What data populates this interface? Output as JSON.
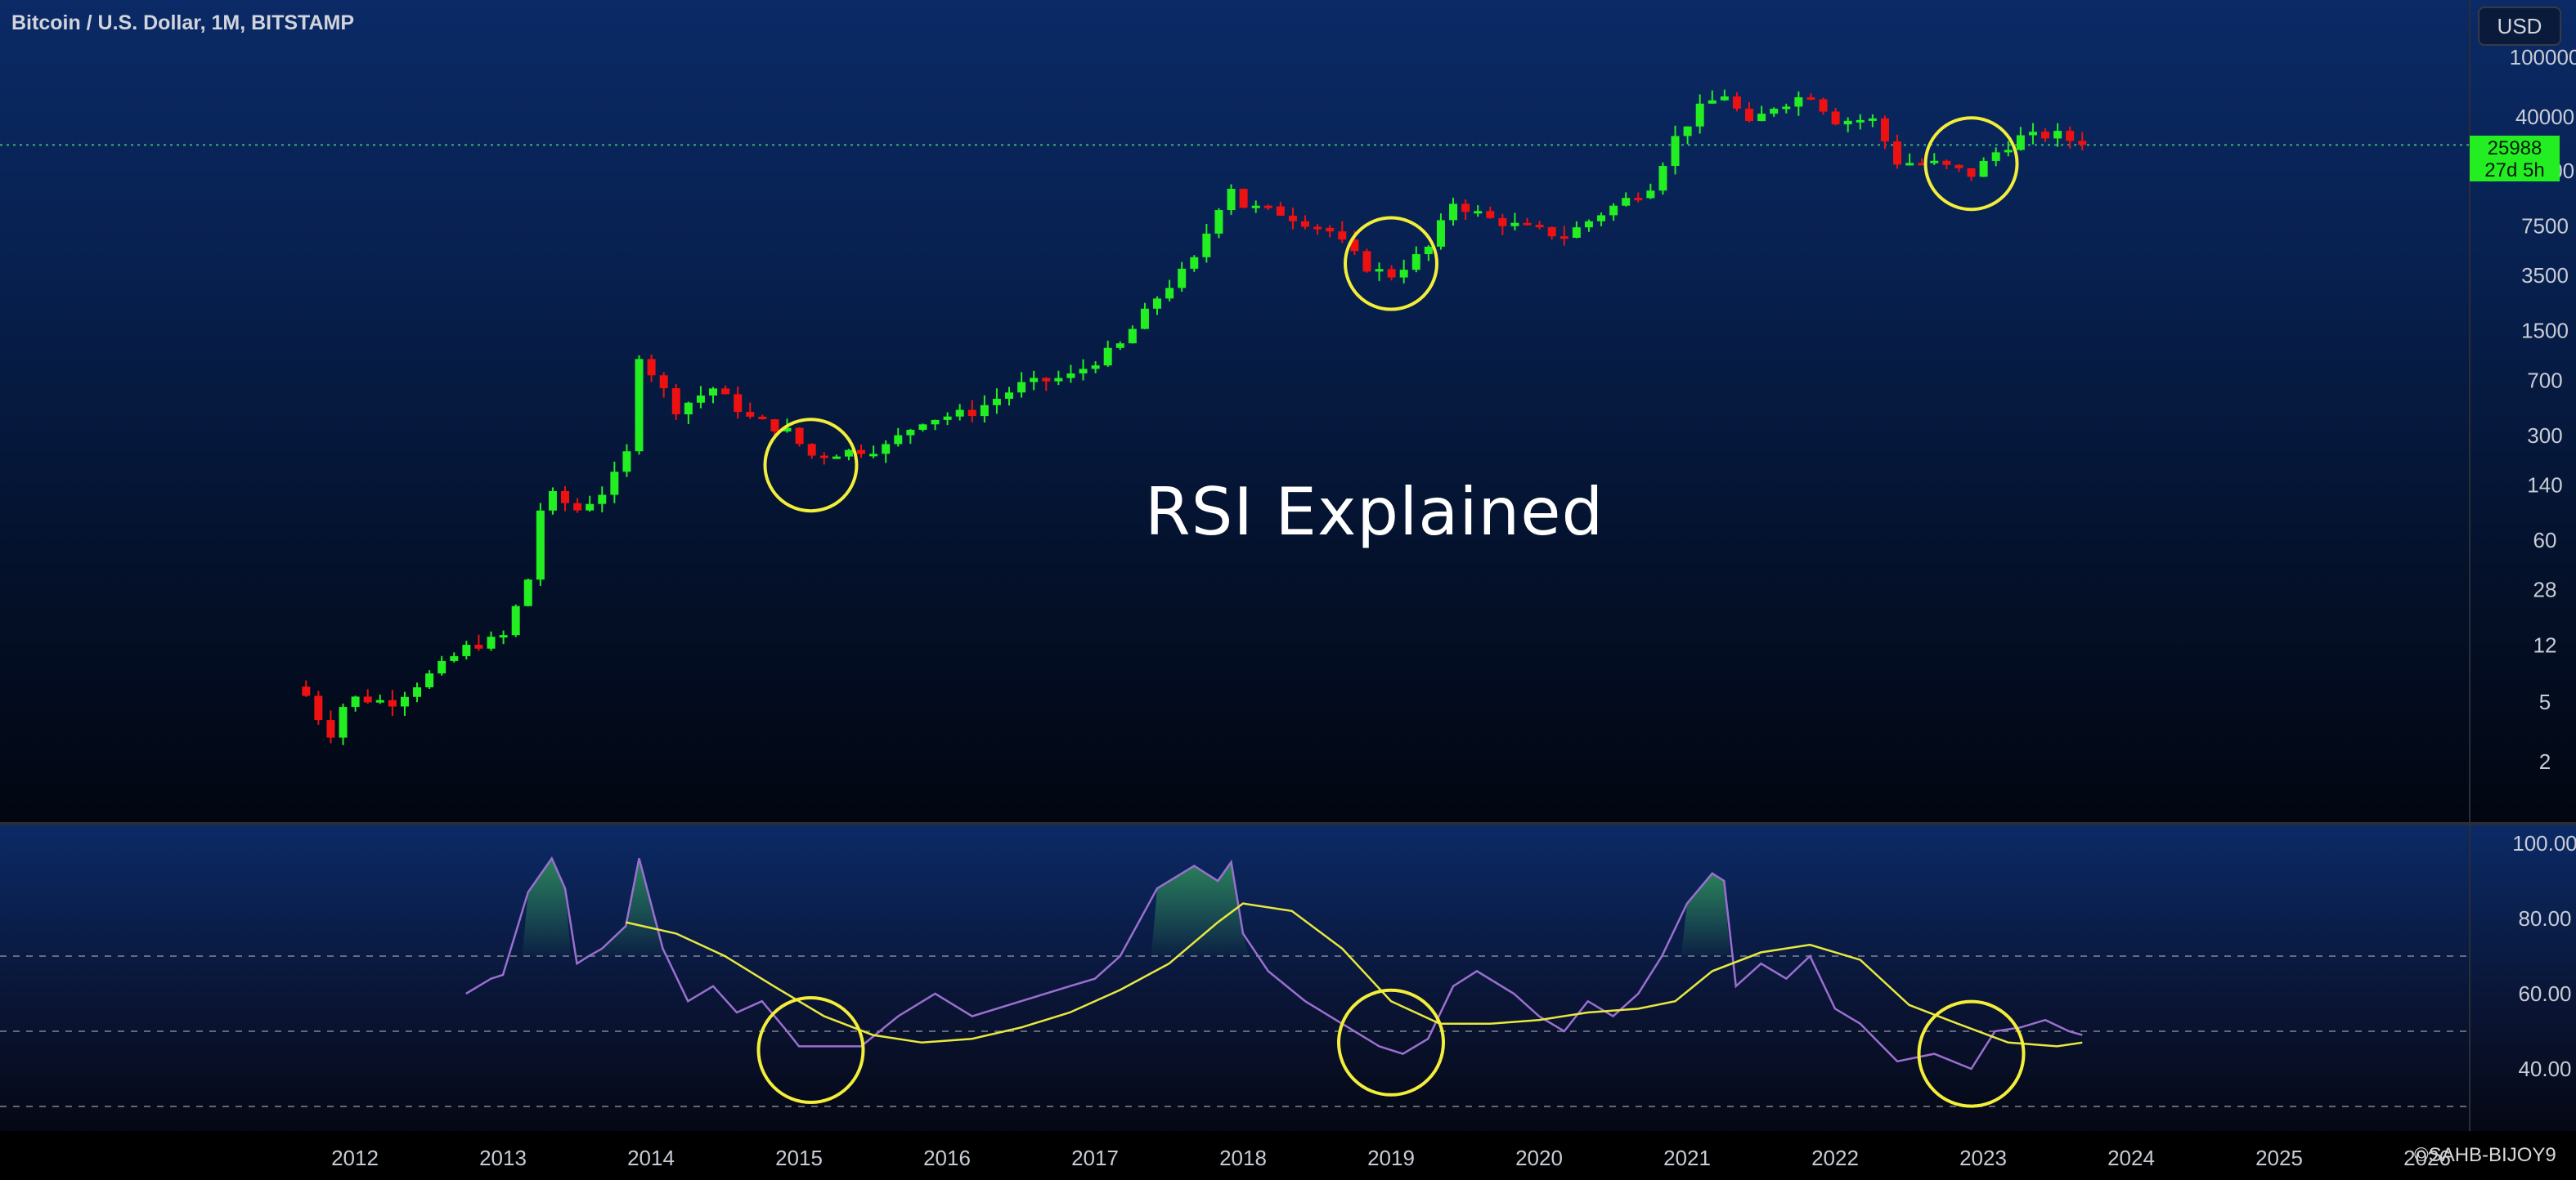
{
  "header": {
    "symbol_title": "Bitcoin / U.S. Dollar, 1M, BITSTAMP",
    "currency_button": "USD"
  },
  "overlay_title": "RSI Explained",
  "watermark": "©SAHB-BIJOY9",
  "price_tag": {
    "price": "25988",
    "countdown": "27d 5h"
  },
  "colors": {
    "up_candle": "#22ee22",
    "down_candle": "#ee1111",
    "rsi_line": "#9a6fd0",
    "rsi_ma_line": "#e8e840",
    "highlight_circle": "#f2ee3a",
    "overbought_fill": "#2e8b57",
    "price_line": "#3cb371"
  },
  "chart_data": [
    {
      "type": "candlestick",
      "title": "",
      "interval": "1M",
      "scale": "log",
      "y_tick_labels": [
        "100000",
        "40000",
        "17500",
        "7500",
        "3500",
        "1500",
        "700",
        "300",
        "140",
        "60",
        "28",
        "12",
        "5",
        "2"
      ],
      "y_ticks": [
        100000,
        40000,
        17500,
        7500,
        3500,
        1500,
        700,
        300,
        140,
        60,
        28,
        12,
        5,
        2
      ],
      "x_tick_labels": [
        "2012",
        "2013",
        "2014",
        "2015",
        "2016",
        "2017",
        "2018",
        "2019",
        "2020",
        "2021",
        "2022",
        "2023",
        "2024",
        "2025",
        "2026"
      ],
      "x_range": [
        2010.6,
        2026.5
      ],
      "last_price": 25988,
      "grid": false,
      "anchors": [
        {
          "t": 2011.67,
          "v": 5.5
        },
        {
          "t": 2011.75,
          "v": 4.0
        },
        {
          "t": 2011.83,
          "v": 3.0
        },
        {
          "t": 2011.92,
          "v": 4.7
        },
        {
          "t": 2012.0,
          "v": 5.3
        },
        {
          "t": 2012.25,
          "v": 5.0
        },
        {
          "t": 2012.5,
          "v": 7.5
        },
        {
          "t": 2012.75,
          "v": 11.5
        },
        {
          "t": 2013.0,
          "v": 13.5
        },
        {
          "t": 2013.17,
          "v": 33.0
        },
        {
          "t": 2013.25,
          "v": 95.0
        },
        {
          "t": 2013.33,
          "v": 120.0
        },
        {
          "t": 2013.5,
          "v": 95.0
        },
        {
          "t": 2013.67,
          "v": 125.0
        },
        {
          "t": 2013.83,
          "v": 200.0
        },
        {
          "t": 2013.92,
          "v": 1050.0
        },
        {
          "t": 2014.0,
          "v": 800.0
        },
        {
          "t": 2014.17,
          "v": 450.0
        },
        {
          "t": 2014.42,
          "v": 620.0
        },
        {
          "t": 2014.67,
          "v": 390.0
        },
        {
          "t": 2014.92,
          "v": 320.0
        },
        {
          "t": 2015.08,
          "v": 220.0
        },
        {
          "t": 2015.33,
          "v": 235.0
        },
        {
          "t": 2015.58,
          "v": 250.0
        },
        {
          "t": 2015.83,
          "v": 380.0
        },
        {
          "t": 2016.17,
          "v": 430.0
        },
        {
          "t": 2016.5,
          "v": 650.0
        },
        {
          "t": 2016.83,
          "v": 740.0
        },
        {
          "t": 2017.17,
          "v": 1200.0
        },
        {
          "t": 2017.42,
          "v": 2500.0
        },
        {
          "t": 2017.67,
          "v": 4400.0
        },
        {
          "t": 2017.83,
          "v": 10000.0
        },
        {
          "t": 2017.92,
          "v": 13800.0
        },
        {
          "t": 2018.0,
          "v": 10200.0
        },
        {
          "t": 2018.25,
          "v": 9200.0
        },
        {
          "t": 2018.58,
          "v": 7000.0
        },
        {
          "t": 2018.83,
          "v": 4000.0
        },
        {
          "t": 2019.0,
          "v": 3500.0
        },
        {
          "t": 2019.25,
          "v": 5300.0
        },
        {
          "t": 2019.42,
          "v": 10800.0
        },
        {
          "t": 2019.67,
          "v": 8300.0
        },
        {
          "t": 2019.92,
          "v": 7200.0
        },
        {
          "t": 2020.17,
          "v": 6400.0
        },
        {
          "t": 2020.42,
          "v": 9100.0
        },
        {
          "t": 2020.75,
          "v": 13800.0
        },
        {
          "t": 2020.92,
          "v": 29000.0
        },
        {
          "t": 2021.08,
          "v": 45000.0
        },
        {
          "t": 2021.25,
          "v": 57000.0
        },
        {
          "t": 2021.42,
          "v": 35000.0
        },
        {
          "t": 2021.58,
          "v": 47000.0
        },
        {
          "t": 2021.83,
          "v": 57000.0
        },
        {
          "t": 2022.0,
          "v": 38000.0
        },
        {
          "t": 2022.25,
          "v": 38500.0
        },
        {
          "t": 2022.42,
          "v": 20000.0
        },
        {
          "t": 2022.67,
          "v": 19500.0
        },
        {
          "t": 2022.92,
          "v": 16500.0
        },
        {
          "t": 2023.08,
          "v": 23000.0
        },
        {
          "t": 2023.25,
          "v": 29200.0
        },
        {
          "t": 2023.5,
          "v": 30400.0
        },
        {
          "t": 2023.67,
          "v": 25988.0
        }
      ]
    },
    {
      "type": "line",
      "title": "",
      "y_tick_labels": [
        "100.00",
        "80.00",
        "60.00",
        "40.00"
      ],
      "y_ticks": [
        100,
        80,
        60,
        40
      ],
      "ylim": [
        27,
        103
      ],
      "bands": [
        70,
        50,
        30
      ],
      "series": [
        {
          "role": "rsi",
          "x": [
            2012.75,
            2012.92,
            2013.0,
            2013.17,
            2013.33,
            2013.42,
            2013.5,
            2013.58,
            2013.67,
            2013.83,
            2013.92,
            2014.08,
            2014.25,
            2014.42,
            2014.58,
            2014.75,
            2014.92,
            2015.0,
            2015.17,
            2015.42,
            2015.67,
            2015.92,
            2016.17,
            2016.5,
            2016.83,
            2017.0,
            2017.17,
            2017.42,
            2017.67,
            2017.83,
            2017.92,
            2018.0,
            2018.17,
            2018.42,
            2018.67,
            2018.92,
            2019.08,
            2019.25,
            2019.42,
            2019.58,
            2019.83,
            2020.0,
            2020.17,
            2020.33,
            2020.5,
            2020.67,
            2020.83,
            2021.0,
            2021.17,
            2021.25,
            2021.33,
            2021.5,
            2021.67,
            2021.83,
            2022.0,
            2022.17,
            2022.42,
            2022.67,
            2022.92,
            2023.08,
            2023.25,
            2023.42,
            2023.58,
            2023.67
          ],
          "y": [
            60,
            64,
            65,
            87,
            96,
            88,
            68,
            70,
            72,
            78,
            96,
            72,
            58,
            62,
            55,
            58,
            50,
            46,
            46,
            46,
            54,
            60,
            54,
            58,
            62,
            64,
            70,
            88,
            94,
            90,
            95,
            76,
            66,
            58,
            52,
            46,
            44,
            48,
            62,
            66,
            60,
            54,
            50,
            58,
            54,
            60,
            70,
            84,
            92,
            90,
            62,
            68,
            64,
            70,
            56,
            52,
            42,
            44,
            40,
            50,
            51,
            53,
            50,
            49
          ]
        },
        {
          "role": "rsi_ma",
          "x": [
            2013.83,
            2014.17,
            2014.5,
            2014.83,
            2015.17,
            2015.5,
            2015.83,
            2016.17,
            2016.5,
            2016.83,
            2017.17,
            2017.5,
            2017.83,
            2018.0,
            2018.33,
            2018.67,
            2019.0,
            2019.33,
            2019.67,
            2020.0,
            2020.33,
            2020.67,
            2020.92,
            2021.17,
            2021.5,
            2021.83,
            2022.17,
            2022.5,
            2022.83,
            2023.17,
            2023.5,
            2023.67
          ],
          "y": [
            79,
            76,
            70,
            62,
            54,
            49,
            47,
            48,
            51,
            55,
            61,
            68,
            79,
            84,
            82,
            72,
            58,
            52,
            52,
            53,
            55,
            56,
            58,
            66,
            71,
            73,
            69,
            57,
            52,
            47,
            46,
            47
          ]
        }
      ]
    }
  ],
  "highlight_circles": [
    {
      "t": 2015.08,
      "price": 190,
      "rsi": 45
    },
    {
      "t": 2019.0,
      "price": 4200,
      "rsi": 47
    },
    {
      "t": 2022.92,
      "price": 19500,
      "rsi": 44
    }
  ]
}
